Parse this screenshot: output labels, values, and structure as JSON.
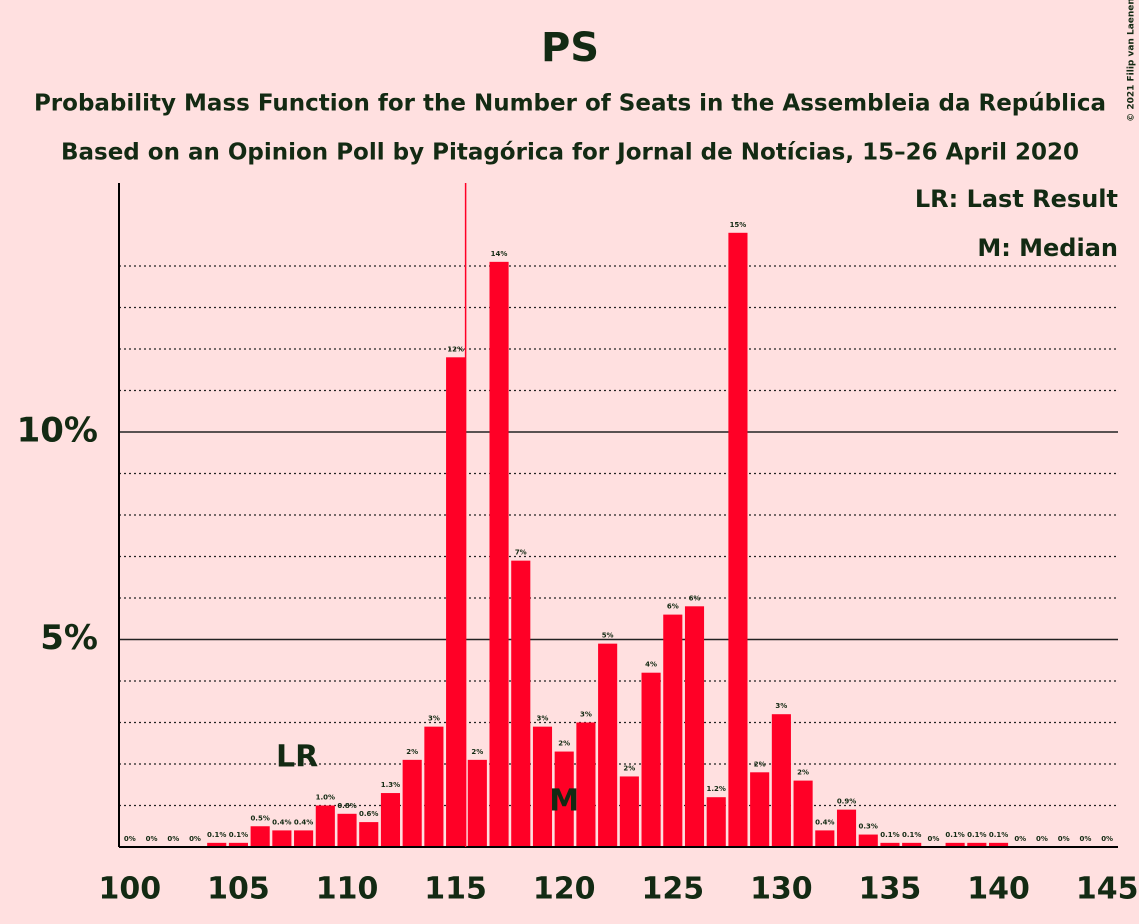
{
  "chart_data": {
    "type": "bar",
    "title": "PS",
    "subtitle": "Probability Mass Function for the Number of Seats in the Assembleia da República",
    "subtitle2": "Based on an Opinion Poll by Pitagórica for Jornal de Notícias, 15–26 April 2020",
    "copyright": "© 2021 Filip van Laenen",
    "legend_lr": "LR: Last Result",
    "legend_m": "M: Median",
    "lr_label": "LR",
    "m_label": "M",
    "last_result": 115,
    "median": 120,
    "color": "#ff0026",
    "x": [
      100,
      101,
      102,
      103,
      104,
      105,
      106,
      107,
      108,
      109,
      110,
      111,
      112,
      113,
      114,
      115,
      116,
      117,
      118,
      119,
      120,
      121,
      122,
      123,
      124,
      125,
      126,
      127,
      128,
      129,
      130,
      131,
      132,
      133,
      134,
      135,
      136,
      137,
      138,
      139,
      140,
      141,
      142,
      143,
      144,
      145
    ],
    "values": [
      0,
      0,
      0,
      0,
      0.1,
      0.1,
      0.5,
      0.4,
      0.4,
      1.0,
      0.8,
      0.6,
      1.3,
      2.1,
      2.9,
      11.8,
      2.1,
      14.1,
      6.9,
      2.9,
      2.3,
      3.0,
      4.9,
      1.7,
      4.2,
      5.6,
      5.8,
      1.2,
      14.8,
      1.8,
      3.2,
      1.6,
      0.4,
      0.9,
      0.3,
      0.1,
      0.1,
      0,
      0.1,
      0.1,
      0.1,
      0,
      0,
      0,
      0,
      0
    ],
    "value_labels": [
      "0%",
      "0%",
      "0%",
      "0%",
      "0.1%",
      "0.1%",
      "0.5%",
      "0.4%",
      "0.4%",
      "1.0%",
      "0.8%",
      "0.6%",
      "1.3%",
      "2%",
      "3%",
      "12%",
      "2%",
      "14%",
      "7%",
      "3%",
      "2%",
      "3%",
      "5%",
      "2%",
      "4%",
      "6%",
      "6%",
      "1.2%",
      "15%",
      "2%",
      "3%",
      "2%",
      "0.4%",
      "0.9%",
      "0.3%",
      "0.1%",
      "0.1%",
      "0%",
      "0.1%",
      "0.1%",
      "0.1%",
      "0%",
      "0%",
      "0%",
      "0%",
      "0%"
    ],
    "xlim": [
      99.5,
      145.5
    ],
    "xticks": [
      100,
      105,
      110,
      115,
      120,
      125,
      130,
      135,
      140,
      145
    ],
    "ylim": [
      0,
      16
    ],
    "yticks": [
      {
        "value": 5,
        "label": "5%"
      },
      {
        "value": 10,
        "label": "10%"
      }
    ],
    "minor_gridlines": [
      1,
      2,
      3,
      4,
      6,
      7,
      8,
      9,
      11,
      12,
      13,
      14
    ],
    "grid": true
  }
}
